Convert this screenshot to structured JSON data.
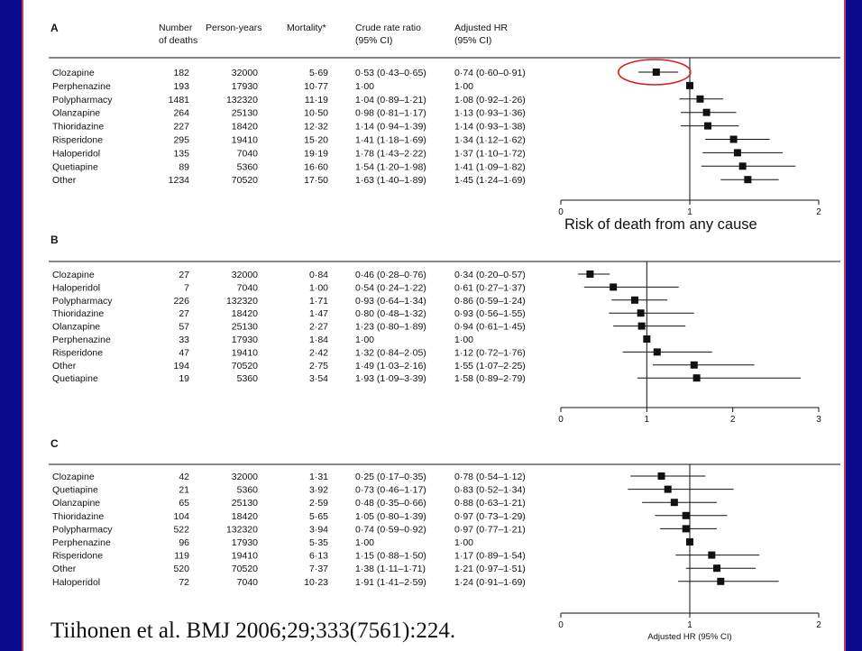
{
  "headers": {
    "panel": "A",
    "deaths": [
      "Number",
      "of deaths"
    ],
    "py": "Person-years",
    "mort": "Mortality*",
    "crude": [
      "Crude rate ratio",
      "(95% CI)"
    ],
    "adj": [
      "Adjusted HR",
      "(95% CI)"
    ]
  },
  "citation": "Tiihonen et al. BMJ 2006;29;333(7561):224.",
  "chart_data": [
    {
      "type": "forest",
      "panel": "A",
      "annotation": "Risk of death from any cause",
      "xaxis": {
        "min": 0,
        "max": 2,
        "ticks": [
          "0",
          "1",
          "2"
        ],
        "reference": 1,
        "label": ""
      },
      "rows": [
        {
          "drug": "Clozapine",
          "deaths": "182",
          "py": "32000",
          "mort": "5·69",
          "crude": "0·53 (0·43–0·65)",
          "adj": "0·74 (0·60–0·91)",
          "hr": 0.74,
          "lo": 0.6,
          "hi": 0.91,
          "circled": true
        },
        {
          "drug": "Perphenazine",
          "deaths": "193",
          "py": "17930",
          "mort": "10·77",
          "crude": "1·00",
          "adj": "1·00",
          "hr": 1.0,
          "lo": 1.0,
          "hi": 1.0
        },
        {
          "drug": "Polypharmacy",
          "deaths": "1481",
          "py": "132320",
          "mort": "11·19",
          "crude": "1·04 (0·89–1·21)",
          "adj": "1·08 (0·92–1·26)",
          "hr": 1.08,
          "lo": 0.92,
          "hi": 1.26
        },
        {
          "drug": "Olanzapine",
          "deaths": "264",
          "py": "25130",
          "mort": "10·50",
          "crude": "0·98 (0·81–1·17)",
          "adj": "1·13 (0·93–1·36)",
          "hr": 1.13,
          "lo": 0.93,
          "hi": 1.36
        },
        {
          "drug": "Thioridazine",
          "deaths": "227",
          "py": "18420",
          "mort": "12·32",
          "crude": "1·14 (0·94–1·39)",
          "adj": "1·14 (0·93–1·38)",
          "hr": 1.14,
          "lo": 0.93,
          "hi": 1.38
        },
        {
          "drug": "Risperidone",
          "deaths": "295",
          "py": "19410",
          "mort": "15·20",
          "crude": "1·41 (1·18–1·69)",
          "adj": "1·34 (1·12–1·62)",
          "hr": 1.34,
          "lo": 1.12,
          "hi": 1.62
        },
        {
          "drug": "Haloperidol",
          "deaths": "135",
          "py": "7040",
          "mort": "19·19",
          "crude": "1·78 (1·43–2·22)",
          "adj": "1·37 (1·10–1·72)",
          "hr": 1.37,
          "lo": 1.1,
          "hi": 1.72
        },
        {
          "drug": "Quetiapine",
          "deaths": "89",
          "py": "5360",
          "mort": "16·60",
          "crude": "1·54 (1·20–1·98)",
          "adj": "1·41 (1·09–1·82)",
          "hr": 1.41,
          "lo": 1.09,
          "hi": 1.82
        },
        {
          "drug": "Other",
          "deaths": "1234",
          "py": "70520",
          "mort": "17·50",
          "crude": "1·63 (1·40–1·89)",
          "adj": "1·45 (1·24–1·69)",
          "hr": 1.45,
          "lo": 1.24,
          "hi": 1.69
        }
      ]
    },
    {
      "type": "forest",
      "panel": "B",
      "annotation": "",
      "xaxis": {
        "min": 0,
        "max": 3,
        "ticks": [
          "0",
          "1",
          "2",
          "3"
        ],
        "reference": 1,
        "label": ""
      },
      "rows": [
        {
          "drug": "Clozapine",
          "deaths": "27",
          "py": "32000",
          "mort": "0·84",
          "crude": "0·46 (0·28–0·76)",
          "adj": "0·34 (0·20–0·57)",
          "hr": 0.34,
          "lo": 0.2,
          "hi": 0.57
        },
        {
          "drug": "Haloperidol",
          "deaths": "7",
          "py": "7040",
          "mort": "1·00",
          "crude": "0·54 (0·24–1·22)",
          "adj": "0·61 (0·27–1·37)",
          "hr": 0.61,
          "lo": 0.27,
          "hi": 1.37
        },
        {
          "drug": "Polypharmacy",
          "deaths": "226",
          "py": "132320",
          "mort": "1·71",
          "crude": "0·93 (0·64–1·34)",
          "adj": "0·86 (0·59–1·24)",
          "hr": 0.86,
          "lo": 0.59,
          "hi": 1.24
        },
        {
          "drug": "Thioridazine",
          "deaths": "27",
          "py": "18420",
          "mort": "1·47",
          "crude": "0·80 (0·48–1·32)",
          "adj": "0·93 (0·56–1·55)",
          "hr": 0.93,
          "lo": 0.56,
          "hi": 1.55
        },
        {
          "drug": "Olanzapine",
          "deaths": "57",
          "py": "25130",
          "mort": "2·27",
          "crude": "1·23 (0·80–1·89)",
          "adj": "0·94 (0·61–1·45)",
          "hr": 0.94,
          "lo": 0.61,
          "hi": 1.45
        },
        {
          "drug": "Perphenazine",
          "deaths": "33",
          "py": "17930",
          "mort": "1·84",
          "crude": "1·00",
          "adj": "1·00",
          "hr": 1.0,
          "lo": 1.0,
          "hi": 1.0
        },
        {
          "drug": "Risperidone",
          "deaths": "47",
          "py": "19410",
          "mort": "2·42",
          "crude": "1·32 (0·84–2·05)",
          "adj": "1·12 (0·72–1·76)",
          "hr": 1.12,
          "lo": 0.72,
          "hi": 1.76
        },
        {
          "drug": "Other",
          "deaths": "194",
          "py": "70520",
          "mort": "2·75",
          "crude": "1·49 (1·03–2·16)",
          "adj": "1·55 (1·07–2·25)",
          "hr": 1.55,
          "lo": 1.07,
          "hi": 2.25
        },
        {
          "drug": "Quetiapine",
          "deaths": "19",
          "py": "5360",
          "mort": "3·54",
          "crude": "1·93 (1·09–3·39)",
          "adj": "1·58 (0·89–2·79)",
          "hr": 1.58,
          "lo": 0.89,
          "hi": 2.79
        }
      ]
    },
    {
      "type": "forest",
      "panel": "C",
      "annotation": "",
      "xaxis": {
        "min": 0,
        "max": 2,
        "ticks": [
          "0",
          "1",
          "2"
        ],
        "reference": 1,
        "label": "Adjusted HR (95% CI)"
      },
      "rows": [
        {
          "drug": "Clozapine",
          "deaths": "42",
          "py": "32000",
          "mort": "1·31",
          "crude": "0·25 (0·17–0·35)",
          "adj": "0·78 (0·54–1·12)",
          "hr": 0.78,
          "lo": 0.54,
          "hi": 1.12
        },
        {
          "drug": "Quetiapine",
          "deaths": "21",
          "py": "5360",
          "mort": "3·92",
          "crude": "0·73 (0·46–1·17)",
          "adj": "0·83 (0·52–1·34)",
          "hr": 0.83,
          "lo": 0.52,
          "hi": 1.34
        },
        {
          "drug": "Olanzapine",
          "deaths": "65",
          "py": "25130",
          "mort": "2·59",
          "crude": "0·48 (0·35–0·66)",
          "adj": "0·88 (0·63–1·21)",
          "hr": 0.88,
          "lo": 0.63,
          "hi": 1.21
        },
        {
          "drug": "Thioridazine",
          "deaths": "104",
          "py": "18420",
          "mort": "5·65",
          "crude": "1·05 (0·80–1·39)",
          "adj": "0·97 (0·73–1·29)",
          "hr": 0.97,
          "lo": 0.73,
          "hi": 1.29
        },
        {
          "drug": "Polypharmacy",
          "deaths": "522",
          "py": "132320",
          "mort": "3·94",
          "crude": "0·74 (0·59–0·92)",
          "adj": "0·97 (0·77–1·21)",
          "hr": 0.97,
          "lo": 0.77,
          "hi": 1.21
        },
        {
          "drug": "Perphenazine",
          "deaths": "96",
          "py": "17930",
          "mort": "5·35",
          "crude": "1·00",
          "adj": "1·00",
          "hr": 1.0,
          "lo": 1.0,
          "hi": 1.0
        },
        {
          "drug": "Risperidone",
          "deaths": "119",
          "py": "19410",
          "mort": "6·13",
          "crude": "1·15 (0·88–1·50)",
          "adj": "1·17 (0·89–1·54)",
          "hr": 1.17,
          "lo": 0.89,
          "hi": 1.54
        },
        {
          "drug": "Other",
          "deaths": "520",
          "py": "70520",
          "mort": "7·37",
          "crude": "1·38 (1·11–1·71)",
          "adj": "1·21 (0·97–1·51)",
          "hr": 1.21,
          "lo": 0.97,
          "hi": 1.51
        },
        {
          "drug": "Haloperidol",
          "deaths": "72",
          "py": "7040",
          "mort": "10·23",
          "crude": "1·91 (1·41–2·59)",
          "adj": "1·24 (0·91–1·69)",
          "hr": 1.24,
          "lo": 0.91,
          "hi": 1.69
        }
      ]
    }
  ],
  "colors": {
    "background": "#0a0a8c",
    "frame_border": "#c23a5a",
    "highlight_circle": "#d42020",
    "ink": "#111111"
  }
}
